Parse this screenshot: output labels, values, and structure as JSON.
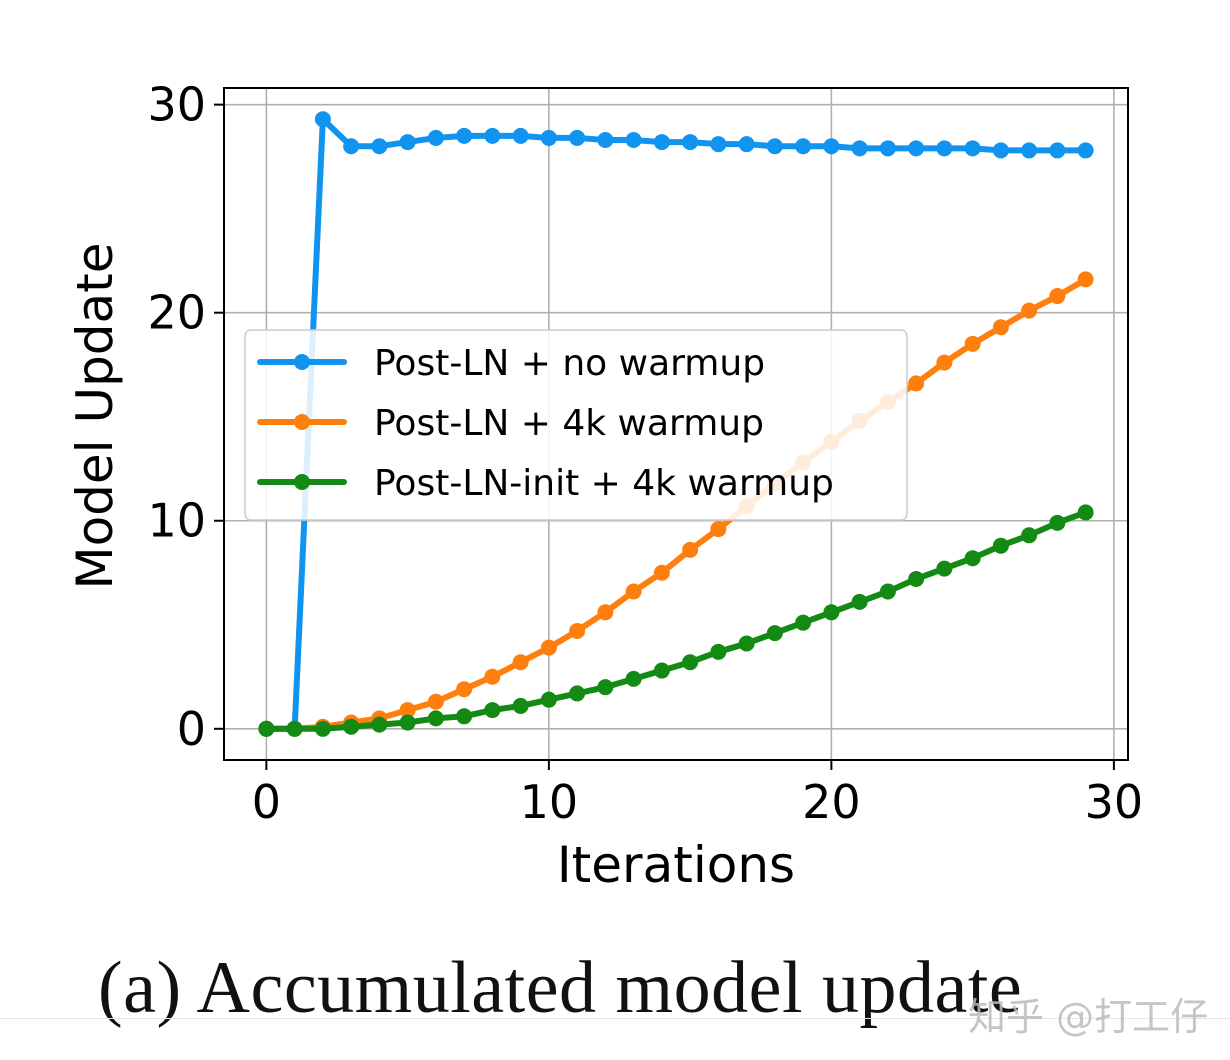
{
  "chart_data": {
    "type": "line",
    "xlabel": "Iterations",
    "ylabel": "Model Update",
    "xlim": [
      -1.5,
      30.5
    ],
    "ylim": [
      -1.5,
      30.8
    ],
    "xticks": [
      0,
      10,
      20,
      30
    ],
    "yticks": [
      0,
      10,
      20,
      30
    ],
    "grid": true,
    "legend_position": "center-left",
    "x": [
      0,
      1,
      2,
      3,
      4,
      5,
      6,
      7,
      8,
      9,
      10,
      11,
      12,
      13,
      14,
      15,
      16,
      17,
      18,
      19,
      20,
      21,
      22,
      23,
      24,
      25,
      26,
      27,
      28,
      29
    ],
    "series": [
      {
        "name": "Post-LN + no warmup",
        "color": "#1193f0",
        "values": [
          0,
          0,
          29.3,
          28.0,
          28.0,
          28.2,
          28.4,
          28.5,
          28.5,
          28.5,
          28.4,
          28.4,
          28.3,
          28.3,
          28.2,
          28.2,
          28.1,
          28.1,
          28.0,
          28.0,
          28.0,
          27.9,
          27.9,
          27.9,
          27.9,
          27.9,
          27.8,
          27.8,
          27.8,
          27.8
        ]
      },
      {
        "name": "Post-LN + 4k warmup",
        "color": "#ff7f0e",
        "values": [
          0,
          0,
          0.1,
          0.3,
          0.5,
          0.9,
          1.3,
          1.9,
          2.5,
          3.2,
          3.9,
          4.7,
          5.6,
          6.6,
          7.5,
          8.6,
          9.6,
          10.7,
          11.8,
          12.8,
          13.8,
          14.8,
          15.7,
          16.6,
          17.6,
          18.5,
          19.3,
          20.1,
          20.8,
          21.6
        ]
      },
      {
        "name": "Post-LN-init + 4k warmup",
        "color": "#138a13",
        "values": [
          0,
          0,
          0,
          0.1,
          0.2,
          0.3,
          0.5,
          0.6,
          0.9,
          1.1,
          1.4,
          1.7,
          2.0,
          2.4,
          2.8,
          3.2,
          3.7,
          4.1,
          4.6,
          5.1,
          5.6,
          6.1,
          6.6,
          7.2,
          7.7,
          8.2,
          8.8,
          9.3,
          9.9,
          10.4
        ]
      }
    ]
  },
  "caption": "(a) Accumulated model update",
  "watermark": "知乎 @打工仔"
}
